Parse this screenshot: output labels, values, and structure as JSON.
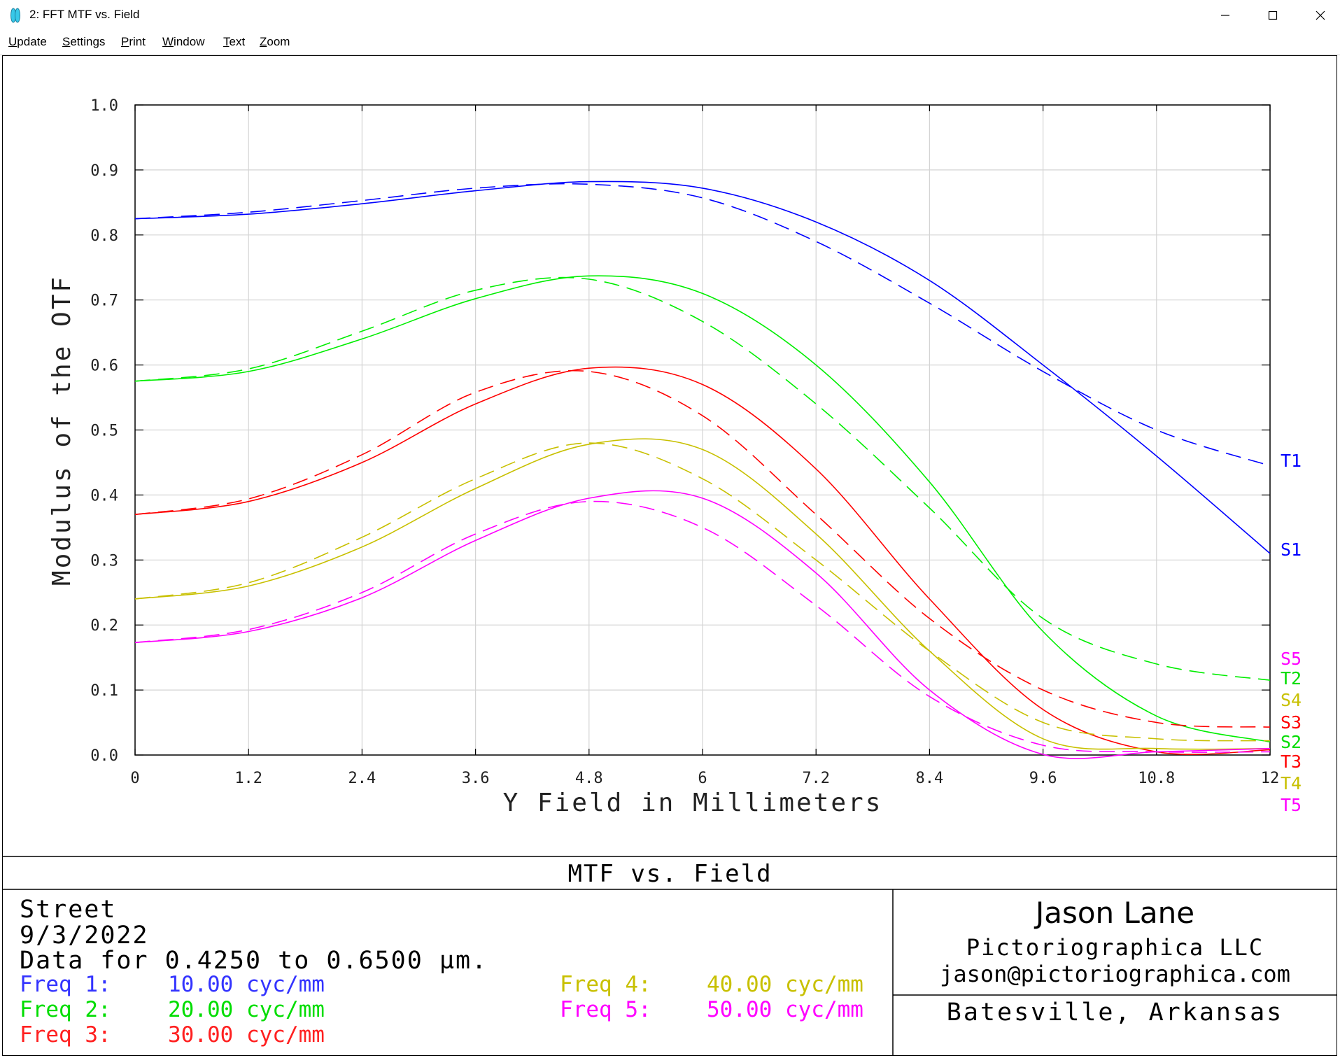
{
  "window": {
    "title": "2: FFT MTF vs. Field",
    "icon": "lens-icon",
    "controls": [
      "minimize-icon",
      "maximize-icon",
      "close-icon"
    ]
  },
  "menu": {
    "items": [
      {
        "label": "Update",
        "key": "U"
      },
      {
        "label": "Settings",
        "key": "S"
      },
      {
        "label": "Print",
        "key": "P"
      },
      {
        "label": "Window",
        "key": "W"
      },
      {
        "label": "Text",
        "key": "T"
      },
      {
        "label": "Zoom",
        "key": "Z"
      }
    ]
  },
  "chart_data": {
    "type": "line",
    "title": "MTF vs. Field",
    "xlabel": "Y Field in Millimeters",
    "ylabel": "Modulus of the OTF",
    "xlim": [
      0,
      12
    ],
    "ylim": [
      0,
      1
    ],
    "xticks": [
      "0",
      "1.2",
      "2.4",
      "3.6",
      "4.8",
      "6",
      "7.2",
      "8.4",
      "9.6",
      "10.8",
      "12"
    ],
    "yticks": [
      "0.0",
      "0.1",
      "0.2",
      "0.3",
      "0.4",
      "0.5",
      "0.6",
      "0.7",
      "0.8",
      "0.9",
      "1.0"
    ],
    "grid": true,
    "x": [
      0,
      1.2,
      2.4,
      3.6,
      4.8,
      6,
      7.2,
      8.4,
      9.6,
      10.8,
      12
    ],
    "series": [
      {
        "name": "S1",
        "color": "#0000ff",
        "dash": "solid",
        "values": [
          0.825,
          0.832,
          0.848,
          0.868,
          0.882,
          0.872,
          0.82,
          0.73,
          0.6,
          0.46,
          0.31
        ]
      },
      {
        "name": "T1",
        "color": "#0000ff",
        "dash": "dashed",
        "values": [
          0.825,
          0.835,
          0.853,
          0.872,
          0.878,
          0.857,
          0.79,
          0.695,
          0.59,
          0.5,
          0.445
        ]
      },
      {
        "name": "S2",
        "color": "#00ee00",
        "dash": "solid",
        "values": [
          0.575,
          0.59,
          0.64,
          0.702,
          0.737,
          0.71,
          0.6,
          0.42,
          0.19,
          0.06,
          0.02
        ]
      },
      {
        "name": "T2",
        "color": "#00ee00",
        "dash": "dashed",
        "values": [
          0.575,
          0.594,
          0.652,
          0.715,
          0.732,
          0.667,
          0.54,
          0.38,
          0.21,
          0.14,
          0.115
        ]
      },
      {
        "name": "S3",
        "color": "#ff0000",
        "dash": "solid",
        "values": [
          0.37,
          0.39,
          0.45,
          0.54,
          0.595,
          0.57,
          0.44,
          0.24,
          0.07,
          0.005,
          0.008
        ]
      },
      {
        "name": "T3",
        "color": "#ff0000",
        "dash": "dashed",
        "values": [
          0.37,
          0.394,
          0.462,
          0.558,
          0.59,
          0.522,
          0.37,
          0.21,
          0.1,
          0.05,
          0.043
        ]
      },
      {
        "name": "S4",
        "color": "#c8c000",
        "dash": "solid",
        "values": [
          0.24,
          0.26,
          0.32,
          0.41,
          0.478,
          0.47,
          0.34,
          0.16,
          0.025,
          0.01,
          0.01
        ]
      },
      {
        "name": "T4",
        "color": "#c8c000",
        "dash": "dashed",
        "values": [
          0.24,
          0.265,
          0.335,
          0.425,
          0.48,
          0.425,
          0.3,
          0.16,
          0.05,
          0.025,
          0.022
        ]
      },
      {
        "name": "S5",
        "color": "#ff00ff",
        "dash": "solid",
        "values": [
          0.173,
          0.19,
          0.242,
          0.33,
          0.395,
          0.395,
          0.28,
          0.1,
          0.001,
          0.005,
          0.01
        ]
      },
      {
        "name": "T5",
        "color": "#ff00ff",
        "dash": "dashed",
        "values": [
          0.173,
          0.193,
          0.25,
          0.34,
          0.39,
          0.35,
          0.23,
          0.09,
          0.015,
          0.005,
          0.005
        ]
      }
    ],
    "legend": [
      {
        "label": "T1",
        "color": "#0000ff"
      },
      {
        "label": "S1",
        "color": "#0000ff"
      },
      {
        "label": "S5",
        "color": "#ff00ff"
      },
      {
        "label": "T2",
        "color": "#00dd00"
      },
      {
        "label": "S4",
        "color": "#c8c000"
      },
      {
        "label": "S3",
        "color": "#ff0000"
      },
      {
        "label": "S2",
        "color": "#00dd00"
      },
      {
        "label": "T3",
        "color": "#ff0000"
      },
      {
        "label": "T4",
        "color": "#c8c000"
      },
      {
        "label": "T5",
        "color": "#ff00ff"
      }
    ]
  },
  "info": {
    "title": "MTF vs. Field",
    "lens_name": "Street",
    "date": "9/3/2022",
    "data_range": "Data for 0.4250 to 0.6500 µm.",
    "freqs": [
      {
        "label": "Freq 1:",
        "value": "10.00 cyc/mm",
        "color": "#3333ff"
      },
      {
        "label": "Freq 2:",
        "value": "20.00 cyc/mm",
        "color": "#00dd00"
      },
      {
        "label": "Freq 3:",
        "value": "30.00 cyc/mm",
        "color": "#ff2020"
      },
      {
        "label": "Freq 4:",
        "value": "40.00 cyc/mm",
        "color": "#c8c000"
      },
      {
        "label": "Freq 5:",
        "value": "50.00 cyc/mm",
        "color": "#ff00ff"
      }
    ],
    "author": "Jason Lane",
    "company": "Pictoriographica LLC",
    "email": "jason@pictoriographica.com",
    "location": "Batesville, Arkansas"
  }
}
